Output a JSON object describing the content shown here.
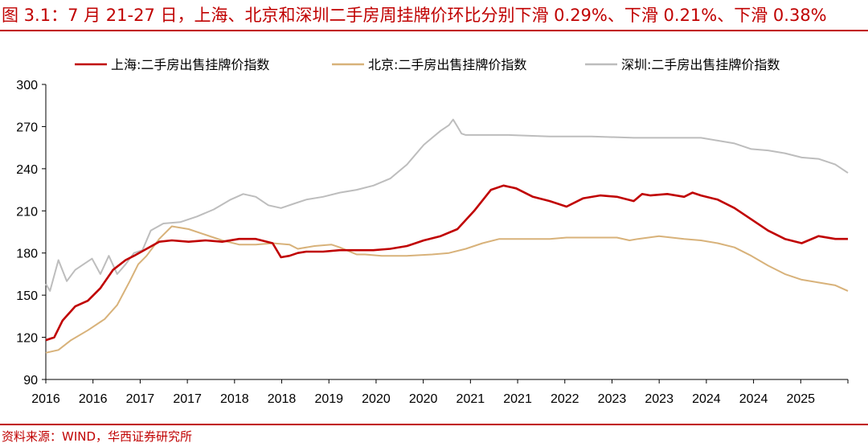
{
  "figure": {
    "title": "图 3.1：7 月 21-27 日，上海、北京和深圳二手房周挂牌价环比分别下滑 0.29%、下滑 0.21%、下滑 0.38%",
    "source": "资料来源：WIND，华西证券研究所"
  },
  "chart_data": {
    "type": "line",
    "title": "",
    "xlabel": "",
    "ylabel": "",
    "ylim": [
      90,
      300
    ],
    "yticks": [
      90,
      120,
      150,
      180,
      210,
      240,
      270,
      300
    ],
    "xlim": [
      2016.0,
      2025.55
    ],
    "xtick_labels": [
      "2016",
      "2016",
      "2017",
      "2017",
      "2018",
      "2018",
      "2019",
      "2020",
      "2020",
      "2021",
      "2021",
      "2022",
      "2023",
      "2023",
      "2024",
      "2024",
      "2025"
    ],
    "grid": false,
    "legend_position": "top",
    "series": [
      {
        "name": "上海:二手房出售挂牌价指数",
        "color": "#c00000",
        "x": [
          2016.0,
          2016.1,
          2016.2,
          2016.35,
          2016.5,
          2016.65,
          2016.8,
          2016.95,
          2017.05,
          2017.2,
          2017.35,
          2017.5,
          2017.7,
          2017.9,
          2018.1,
          2018.3,
          2018.5,
          2018.7,
          2018.8,
          2018.9,
          2019.0,
          2019.1,
          2019.3,
          2019.5,
          2019.7,
          2019.9,
          2020.1,
          2020.3,
          2020.5,
          2020.7,
          2020.9,
          2021.1,
          2021.3,
          2021.45,
          2021.6,
          2021.8,
          2022.0,
          2022.2,
          2022.4,
          2022.6,
          2022.8,
          2023.0,
          2023.1,
          2023.2,
          2023.4,
          2023.6,
          2023.7,
          2023.8,
          2024.0,
          2024.2,
          2024.4,
          2024.6,
          2024.8,
          2025.0,
          2025.2,
          2025.4,
          2025.55
        ],
        "values": [
          118,
          120,
          132,
          142,
          146,
          155,
          168,
          175,
          178,
          183,
          188,
          189,
          188,
          189,
          188,
          190,
          190,
          187,
          177,
          178,
          180,
          181,
          181,
          182,
          182,
          182,
          183,
          185,
          189,
          192,
          197,
          210,
          225,
          228,
          226,
          220,
          217,
          213,
          219,
          221,
          220,
          217,
          222,
          221,
          222,
          220,
          223,
          221,
          218,
          212,
          204,
          196,
          190,
          187,
          192,
          190,
          190
        ]
      },
      {
        "name": "北京:二手房出售挂牌价指数",
        "color": "#d8b27a",
        "x": [
          2016.0,
          2016.15,
          2016.3,
          2016.5,
          2016.7,
          2016.85,
          2017.0,
          2017.1,
          2017.2,
          2017.35,
          2017.5,
          2017.7,
          2017.9,
          2018.1,
          2018.3,
          2018.5,
          2018.7,
          2018.9,
          2019.0,
          2019.2,
          2019.4,
          2019.5,
          2019.7,
          2019.8,
          2020.0,
          2020.3,
          2020.6,
          2020.8,
          2021.0,
          2021.2,
          2021.4,
          2021.6,
          2021.8,
          2022.0,
          2022.2,
          2022.4,
          2022.6,
          2022.8,
          2022.95,
          2023.05,
          2023.3,
          2023.6,
          2023.8,
          2024.0,
          2024.2,
          2024.4,
          2024.6,
          2024.8,
          2025.0,
          2025.2,
          2025.4,
          2025.55
        ],
        "values": [
          109,
          111,
          118,
          125,
          133,
          143,
          160,
          172,
          178,
          190,
          199,
          197,
          193,
          189,
          186,
          186,
          187,
          186,
          183,
          185,
          186,
          184,
          179,
          179,
          178,
          178,
          179,
          180,
          183,
          187,
          190,
          190,
          190,
          190,
          191,
          191,
          191,
          191,
          189,
          190,
          192,
          190,
          189,
          187,
          184,
          178,
          171,
          165,
          161,
          159,
          157,
          153
        ]
      },
      {
        "name": "深圳:二手房出售挂牌价指数",
        "color": "#bdbdbd",
        "x": [
          2016.0,
          2016.05,
          2016.15,
          2016.25,
          2016.35,
          2016.45,
          2016.55,
          2016.65,
          2016.75,
          2016.85,
          2016.95,
          2017.05,
          2017.15,
          2017.25,
          2017.4,
          2017.6,
          2017.8,
          2018.0,
          2018.2,
          2018.35,
          2018.5,
          2018.65,
          2018.8,
          2018.95,
          2019.1,
          2019.3,
          2019.5,
          2019.7,
          2019.9,
          2020.1,
          2020.3,
          2020.5,
          2020.6,
          2020.7,
          2020.8,
          2020.85,
          2020.9,
          2020.95,
          2021.0,
          2021.1,
          2021.5,
          2022.0,
          2022.5,
          2023.0,
          2023.4,
          2023.8,
          2024.0,
          2024.2,
          2024.4,
          2024.6,
          2024.8,
          2025.0,
          2025.2,
          2025.4,
          2025.55
        ],
        "values": [
          158,
          153,
          175,
          160,
          168,
          172,
          176,
          165,
          178,
          165,
          172,
          180,
          182,
          196,
          201,
          202,
          206,
          211,
          218,
          222,
          220,
          214,
          212,
          215,
          218,
          220,
          223,
          225,
          228,
          233,
          243,
          257,
          262,
          267,
          271,
          275,
          270,
          265,
          264,
          264,
          264,
          263,
          263,
          262,
          262,
          262,
          260,
          258,
          254,
          253,
          251,
          248,
          247,
          243,
          237
        ]
      }
    ]
  }
}
